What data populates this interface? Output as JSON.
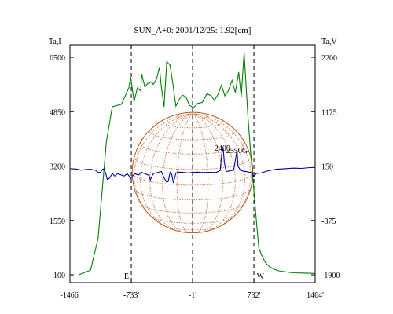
{
  "chart_data": {
    "type": "line",
    "title": "SUN_A+0: 2001/12/25: 1.92[cm]",
    "left_axis": {
      "label": "Ta,I",
      "ticks": [
        6500,
        4850,
        3200,
        1550,
        -100
      ],
      "range": [
        -100,
        6500
      ]
    },
    "right_axis": {
      "label": "Ta,V",
      "ticks": [
        2200,
        1175,
        150,
        -875,
        -1900
      ],
      "range": [
        -1900,
        2200
      ]
    },
    "x_axis": {
      "ticks": [
        -1466,
        -733,
        -1,
        732,
        1464
      ],
      "tick_labels": [
        "-1466'",
        "-733'",
        "-1'",
        "732'",
        "1464'"
      ],
      "range": [
        -1466,
        1464
      ]
    },
    "grid": false,
    "colors": {
      "intensity": "#008000",
      "polarization": "#0000a0",
      "disk": "#b35a1f",
      "graticule": "#cc6633",
      "frame": "#000000"
    },
    "limb_markers": [
      {
        "x": -733,
        "style": "dashed"
      },
      {
        "x": -1,
        "style": "dashed"
      },
      {
        "x": 732,
        "style": "dashed"
      }
    ],
    "solar_limb_labels": [
      {
        "text": "E",
        "x": -790
      },
      {
        "text": "W",
        "x": 810
      }
    ],
    "annotations": [
      {
        "text": "2400",
        "x": 355,
        "y_right": 436
      },
      {
        "text": "2550G",
        "x": 530,
        "y_right": 392
      }
    ],
    "solar_disk": {
      "center_x": -1,
      "radius_arcmin": 721,
      "center_y_left": 3000
    },
    "series": [
      {
        "name": "",
        "axis": "left",
        "color": "#008000",
        "x": [
          -1360,
          -1220,
          -1130,
          -1030,
          -960,
          -850,
          -763,
          -740,
          -700,
          -660,
          -620,
          -610,
          -570,
          -540,
          -495,
          -470,
          -430,
          -397,
          -374,
          -342,
          -309,
          -270,
          -238,
          -200,
          -160,
          -120,
          -80,
          -40,
          10,
          60,
          115,
          170,
          220,
          260,
          300,
          345,
          385,
          425,
          470,
          510,
          550,
          580,
          615,
          660,
          690,
          760,
          790,
          820,
          870,
          920,
          980,
          1030,
          1100,
          1200,
          1464
        ],
        "y": [
          -100,
          40,
          1000,
          3950,
          5000,
          5075,
          5570,
          5900,
          5150,
          5570,
          5480,
          6000,
          5590,
          5700,
          5750,
          5680,
          5850,
          6200,
          5600,
          5000,
          6370,
          6260,
          5720,
          5020,
          5230,
          5350,
          5300,
          5050,
          4970,
          5100,
          5130,
          5390,
          5340,
          5190,
          5360,
          5650,
          5330,
          5480,
          5800,
          5430,
          6050,
          5300,
          6650,
          4720,
          3700,
          1600,
          720,
          520,
          270,
          140,
          60,
          20,
          -10,
          -40,
          -60
        ]
      },
      {
        "name": "",
        "axis": "right",
        "color": "#0000a0",
        "x": [
          -1460,
          -1390,
          -1330,
          -1280,
          -1220,
          -1160,
          -1130,
          -1100,
          -1080,
          -1060,
          -1040,
          -1020,
          -1000,
          -960,
          -930,
          -900,
          -860,
          -820,
          -780,
          -736,
          -720,
          -690,
          -650,
          -610,
          -572,
          -535,
          -520,
          -506,
          -484,
          -470,
          -450,
          -411,
          -374,
          -340,
          -309,
          -292,
          -270,
          -250,
          -230,
          -200,
          -160,
          -120,
          -80,
          -40,
          0,
          60,
          120,
          200,
          280,
          330,
          350,
          365,
          378,
          400,
          450,
          490,
          520,
          530,
          542,
          575,
          620,
          660,
          700,
          730,
          760,
          820,
          900,
          1000,
          1100,
          1200,
          1300,
          1400,
          1464
        ],
        "y": [
          100,
          94,
          72,
          83,
          90,
          68,
          28,
          31,
          84,
          98,
          20,
          -100,
          -90,
          6,
          -39,
          3,
          -15,
          -39,
          5,
          -87,
          -43,
          6,
          -21,
          31,
          6,
          -17,
          -24,
          -113,
          -34,
          6,
          16,
          31,
          46,
          -76,
          -158,
          -139,
          31,
          -6,
          -168,
          20,
          35,
          31,
          24,
          20,
          31,
          35,
          27,
          31,
          27,
          65,
          420,
          480,
          220,
          46,
          60,
          72,
          350,
          455,
          146,
          64,
          50,
          40,
          24,
          -50,
          10,
          20,
          60,
          90,
          100,
          110,
          105,
          120,
          123
        ]
      }
    ]
  }
}
